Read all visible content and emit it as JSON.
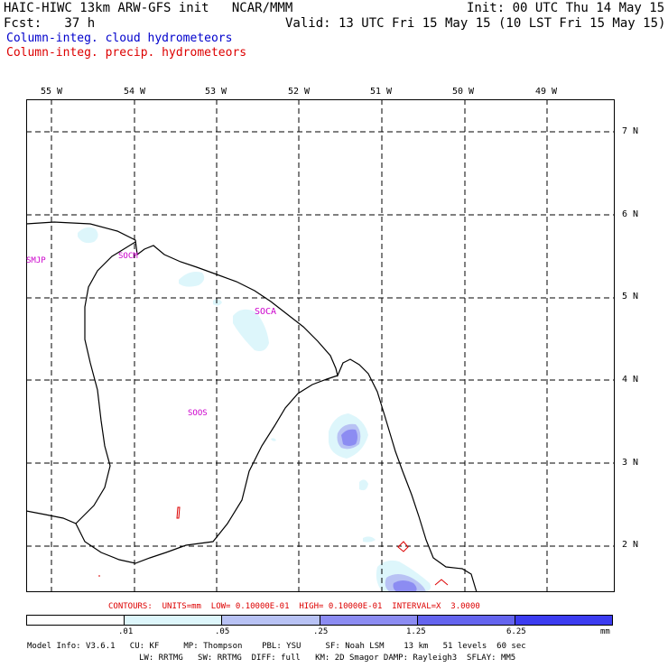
{
  "header": {
    "title_left": "HAIC-HIWC 13km ARW-GFS init   NCAR/MMM",
    "fcst": "Fcst:   37 h",
    "init": "Init: 00 UTC Thu 14 May 15",
    "valid": "Valid: 13 UTC Fri 15 May 15 (10 LST Fri 15 May 15)",
    "legend_cloud": "Column-integ. cloud hydrometeors",
    "legend_precip": "Column-integ. precip. hydrometeors",
    "cloud_color": "#0000cc",
    "precip_color": "#dd0000"
  },
  "map": {
    "lon_labels": [
      "55 W",
      "54 W",
      "53 W",
      "52 W",
      "51 W",
      "50 W",
      "49 W"
    ],
    "lat_labels": [
      "7 N",
      "6 N",
      "5 N",
      "4 N",
      "3 N",
      "2 N"
    ],
    "station_labels": [
      "SMJP",
      "SOCM",
      "SOCA",
      "SOOS"
    ],
    "station_color": "#cc00cc"
  },
  "contours": {
    "info": "CONTOURS:  UNITS=mm  LOW= 0.10000E-01  HIGH= 0.10000E-01  INTERVAL=X  3.0000",
    "color": "#dd0000"
  },
  "colorbar": {
    "colors": [
      "#ffffff",
      "#ddf6fb",
      "#b8c2f4",
      "#8c8cf2",
      "#6464ee",
      "#3c3cf0",
      "#0a0af0"
    ],
    "tick_labels": [
      ".01",
      ".05",
      ".25",
      "1.25",
      "6.25",
      "mm"
    ]
  },
  "footer": {
    "line1": "Model Info: V3.6.1   CU: KF     MP: Thompson    PBL: YSU     SF: Noah LSM    13 km   51 levels  60 sec",
    "line2": "LW: RRTMG   SW: RRTMG  DIFF: full   KM: 2D Smagor DAMP: Rayleigh3  SFLAY: MM5"
  }
}
